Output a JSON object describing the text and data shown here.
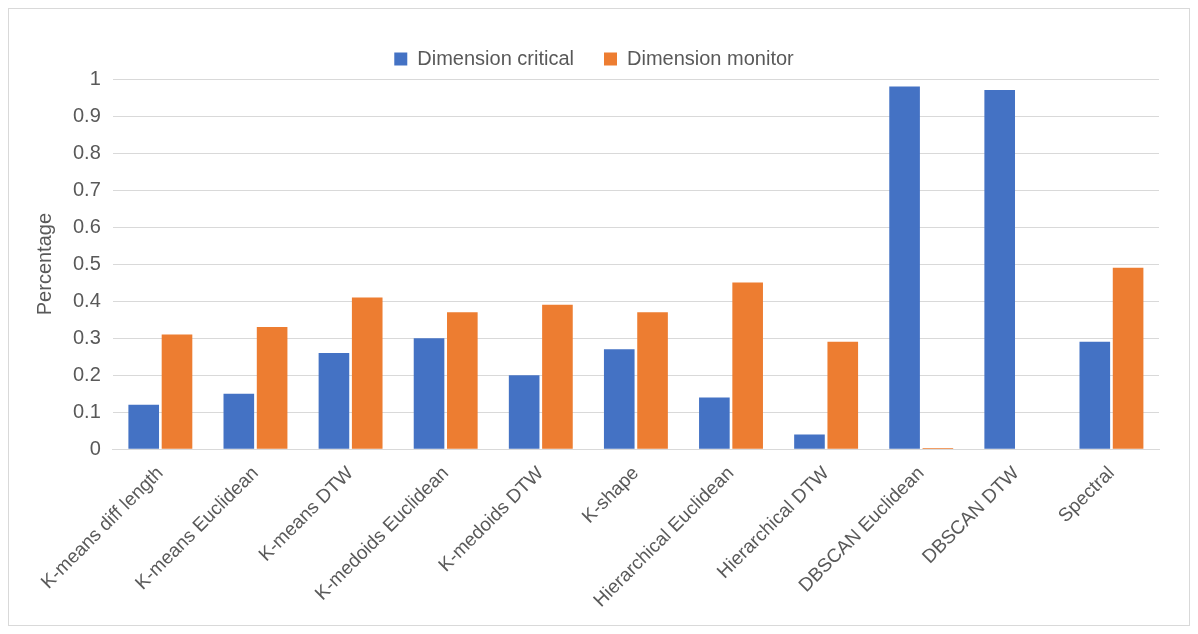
{
  "chart_data": {
    "type": "bar",
    "ylabel": "Percentage",
    "categories": [
      "K-means diff length",
      "K-means Euclidean",
      "K-means DTW",
      "K-medoids Euclidean",
      "K-medoids DTW",
      "K-shape",
      "Hierarchical Euclidean",
      "Hierarchical DTW",
      "DBSCAN Euclidean",
      "DBSCAN DTW",
      "Spectral"
    ],
    "series": [
      {
        "name": "Dimension critical",
        "color": "#4472c4",
        "values": [
          0.12,
          0.15,
          0.26,
          0.3,
          0.2,
          0.27,
          0.14,
          0.04,
          0.98,
          0.97,
          0.29
        ]
      },
      {
        "name": "Dimension monitor",
        "color": "#ed7d31",
        "values": [
          0.31,
          0.33,
          0.41,
          0.37,
          0.39,
          0.37,
          0.45,
          0.29,
          0.003,
          0,
          0.49
        ]
      }
    ],
    "ylim": [
      0,
      1
    ],
    "yticks": [
      0,
      0.1,
      0.2,
      0.3,
      0.4,
      0.5,
      0.6,
      0.7,
      0.8,
      0.9,
      1
    ],
    "grid": "y",
    "legend": "top"
  }
}
